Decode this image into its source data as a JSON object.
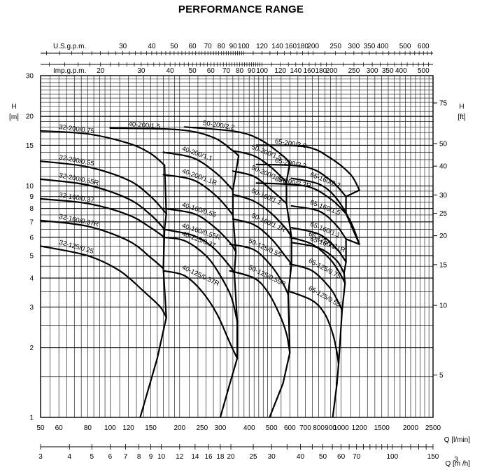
{
  "chart_data": {
    "type": "line",
    "title": "PERFORMANCE RANGE",
    "y_scale": "log",
    "x_scale": "log",
    "ylabel": "H",
    "ylabel_unit": "[m]",
    "y2label": "H",
    "y2label_unit": "[ft]",
    "xlabel_lpm": "Q [l/min]",
    "xlabel_m3h": "Q [m /h]",
    "top_axis_usgpm_label": "U.S.g.p.m.",
    "top_axis_impgpm_label": "Imp.g.p.m.",
    "ylim": [
      1,
      30
    ],
    "xlim_lpm": [
      50,
      2500
    ],
    "y_ticks_m": [
      1,
      2,
      3,
      4,
      5,
      6,
      7,
      8,
      9,
      10,
      15,
      20,
      30
    ],
    "y_ticks_ft": [
      5,
      10,
      15,
      20,
      25,
      30,
      40,
      50,
      75
    ],
    "x_ticks_lpm": [
      50,
      60,
      80,
      100,
      120,
      150,
      200,
      250,
      300,
      400,
      500,
      600,
      700,
      800,
      900,
      1000,
      1200,
      1500,
      2000,
      2500
    ],
    "x_ticks_m3h": [
      3,
      4,
      5,
      6,
      7,
      8,
      9,
      10,
      12,
      14,
      16,
      18,
      20,
      25,
      30,
      40,
      50,
      60,
      70,
      100,
      150
    ],
    "top_ticks_usgpm": [
      30,
      40,
      50,
      60,
      70,
      80,
      90,
      100,
      120,
      140,
      160,
      180,
      200,
      250,
      300,
      350,
      400,
      500,
      600
    ],
    "top_ticks_impgpm": [
      20,
      30,
      40,
      50,
      60,
      70,
      80,
      90,
      100,
      120,
      140,
      160,
      180,
      200,
      250,
      300,
      350,
      400,
      500
    ],
    "grid": true,
    "series": [
      {
        "name": "32-200/0.75",
        "points": [
          [
            50,
            17.3
          ],
          [
            80,
            16.8
          ],
          [
            120,
            15.3
          ],
          [
            150,
            13.8
          ],
          [
            172,
            12.3
          ]
        ]
      },
      {
        "name": "32-200/0.55",
        "points": [
          [
            50,
            12.8
          ],
          [
            80,
            12.1
          ],
          [
            120,
            10.6
          ],
          [
            150,
            9.0
          ],
          [
            175,
            7.6
          ]
        ]
      },
      {
        "name": "32-200/0.55R",
        "points": [
          [
            50,
            10.7
          ],
          [
            80,
            10.1
          ],
          [
            120,
            8.8
          ],
          [
            150,
            7.5
          ],
          [
            172,
            6.5
          ]
        ]
      },
      {
        "name": "32-160/0.37",
        "points": [
          [
            50,
            8.8
          ],
          [
            80,
            8.4
          ],
          [
            120,
            7.5
          ],
          [
            150,
            6.6
          ],
          [
            172,
            6.0
          ]
        ]
      },
      {
        "name": "32-160/0.37R",
        "points": [
          [
            50,
            7.1
          ],
          [
            80,
            6.7
          ],
          [
            120,
            5.8
          ],
          [
            150,
            4.9
          ],
          [
            170,
            4.4
          ]
        ]
      },
      {
        "name": "32-125/0.25",
        "points": [
          [
            50,
            5.5
          ],
          [
            80,
            5.0
          ],
          [
            110,
            4.3
          ],
          [
            140,
            3.5
          ],
          [
            165,
            3.0
          ],
          [
            175,
            2.7
          ]
        ]
      },
      {
        "name": "40-200/1.5",
        "points": [
          [
            100,
            17.8
          ],
          [
            200,
            17.5
          ],
          [
            280,
            16.2
          ],
          [
            340,
            14.2
          ],
          [
            360,
            13.5
          ]
        ]
      },
      {
        "name": "40-200/1.1",
        "points": [
          [
            170,
            14.0
          ],
          [
            230,
            13.2
          ],
          [
            290,
            11.3
          ],
          [
            340,
            9.6
          ]
        ]
      },
      {
        "name": "40-200/1.1R",
        "points": [
          [
            170,
            11.2
          ],
          [
            230,
            10.6
          ],
          [
            290,
            9.0
          ],
          [
            340,
            7.5
          ]
        ]
      },
      {
        "name": "40-160/0.55",
        "points": [
          [
            170,
            8.0
          ],
          [
            230,
            7.6
          ],
          [
            280,
            6.7
          ],
          [
            330,
            5.7
          ],
          [
            350,
            5.2
          ]
        ]
      },
      {
        "name": "40-160/0.55R",
        "points": [
          [
            170,
            6.5
          ],
          [
            230,
            6.1
          ],
          [
            280,
            5.4
          ],
          [
            330,
            4.5
          ],
          [
            345,
            4.2
          ]
        ]
      },
      {
        "name": "40-125/0.37",
        "points": [
          [
            170,
            6.0
          ],
          [
            210,
            5.8
          ],
          [
            260,
            5.0
          ],
          [
            300,
            4.1
          ],
          [
            335,
            3.3
          ],
          [
            355,
            2.6
          ]
        ]
      },
      {
        "name": "40-125/0.37R",
        "points": [
          [
            170,
            4.3
          ],
          [
            210,
            4.1
          ],
          [
            250,
            3.5
          ],
          [
            290,
            2.8
          ],
          [
            330,
            2.1
          ],
          [
            355,
            1.8
          ]
        ]
      },
      {
        "name": "50-200/2.2",
        "points": [
          [
            210,
            18.0
          ],
          [
            350,
            17.2
          ],
          [
            450,
            15.8
          ],
          [
            560,
            13.5
          ],
          [
            600,
            12.6
          ]
        ]
      },
      {
        "name": "50-200/1.5",
        "points": [
          [
            340,
            14.2
          ],
          [
            420,
            13.5
          ],
          [
            500,
            12.0
          ],
          [
            580,
            10.4
          ]
        ]
      },
      {
        "name": "50-200/1.5R",
        "points": [
          [
            340,
            11.6
          ],
          [
            420,
            11.0
          ],
          [
            500,
            9.6
          ],
          [
            580,
            8.4
          ]
        ]
      },
      {
        "name": "50-160/1.1",
        "points": [
          [
            340,
            9.2
          ],
          [
            420,
            8.6
          ],
          [
            500,
            7.6
          ],
          [
            580,
            6.5
          ],
          [
            610,
            6.0
          ]
        ]
      },
      {
        "name": "50-160/1.1R",
        "points": [
          [
            340,
            7.2
          ],
          [
            420,
            6.8
          ],
          [
            500,
            5.9
          ],
          [
            580,
            4.9
          ],
          [
            610,
            4.6
          ]
        ]
      },
      {
        "name": "50-125/0.55",
        "points": [
          [
            330,
            5.6
          ],
          [
            420,
            5.3
          ],
          [
            500,
            4.5
          ],
          [
            560,
            3.8
          ],
          [
            590,
            3.4
          ]
        ]
      },
      {
        "name": "50-125/0.55R",
        "points": [
          [
            330,
            4.3
          ],
          [
            420,
            4.0
          ],
          [
            480,
            3.5
          ],
          [
            540,
            2.8
          ],
          [
            580,
            2.3
          ],
          [
            600,
            1.9
          ]
        ]
      },
      {
        "name": "65-200/3.0",
        "points": [
          [
            430,
            15.0
          ],
          [
            700,
            14.8
          ],
          [
            900,
            13.2
          ],
          [
            1100,
            11.2
          ],
          [
            1200,
            9.6
          ]
        ]
      },
      {
        "name": "65-200/2.2",
        "points": [
          [
            430,
            12.4
          ],
          [
            700,
            12.1
          ],
          [
            900,
            10.6
          ],
          [
            1050,
            9.0
          ]
        ]
      },
      {
        "name": "65-200/2.2R",
        "points": [
          [
            430,
            10.3
          ],
          [
            700,
            10.0
          ],
          [
            900,
            8.8
          ],
          [
            1050,
            7.6
          ]
        ]
      },
      {
        "name": "65-160/2.2",
        "points": [
          [
            610,
            10.8
          ],
          [
            800,
            10.2
          ],
          [
            950,
            8.9
          ],
          [
            1100,
            7.0
          ],
          [
            1200,
            5.6
          ]
        ]
      },
      {
        "name": "65-160/1.5",
        "points": [
          [
            610,
            8.2
          ],
          [
            800,
            7.8
          ],
          [
            950,
            6.8
          ],
          [
            1050,
            5.9
          ]
        ]
      },
      {
        "name": "65-160/1.1",
        "points": [
          [
            610,
            6.6
          ],
          [
            800,
            6.2
          ],
          [
            950,
            5.4
          ],
          [
            1050,
            4.7
          ]
        ]
      },
      {
        "name": "65-160/1.1R",
        "points": [
          [
            610,
            5.7
          ],
          [
            800,
            5.4
          ],
          [
            950,
            4.8
          ],
          [
            1030,
            4.2
          ]
        ]
      },
      {
        "name": "65-125/1.1",
        "points": [
          [
            600,
            6.0
          ],
          [
            750,
            5.6
          ],
          [
            900,
            4.8
          ],
          [
            1000,
            4.1
          ],
          [
            1040,
            3.8
          ]
        ]
      },
      {
        "name": "65-125/0.75",
        "points": [
          [
            600,
            4.6
          ],
          [
            750,
            4.3
          ],
          [
            900,
            3.6
          ],
          [
            980,
            3.1
          ],
          [
            1010,
            2.9
          ]
        ]
      },
      {
        "name": "65-125/0.55",
        "points": [
          [
            600,
            3.5
          ],
          [
            750,
            3.2
          ],
          [
            850,
            2.8
          ],
          [
            920,
            2.3
          ],
          [
            960,
            1.9
          ],
          [
            975,
            1.7
          ]
        ]
      }
    ],
    "envelopes": [
      {
        "points": [
          [
            172,
            12.3
          ],
          [
            175,
            7.6
          ],
          [
            172,
            6.5
          ],
          [
            170,
            4.4
          ],
          [
            175,
            2.7
          ],
          [
            160,
            1.8
          ],
          [
            135,
            1.0
          ]
        ]
      },
      {
        "points": [
          [
            360,
            13.5
          ],
          [
            340,
            9.6
          ],
          [
            340,
            7.5
          ],
          [
            350,
            5.2
          ],
          [
            345,
            4.2
          ],
          [
            355,
            2.6
          ],
          [
            355,
            1.8
          ],
          [
            330,
            1.4
          ],
          [
            300,
            1.0
          ]
        ]
      },
      {
        "points": [
          [
            600,
            12.6
          ],
          [
            580,
            10.4
          ],
          [
            580,
            8.4
          ],
          [
            610,
            6.0
          ],
          [
            610,
            4.6
          ],
          [
            590,
            3.4
          ],
          [
            600,
            1.9
          ],
          [
            560,
            1.4
          ],
          [
            490,
            1.0
          ]
        ]
      },
      {
        "points": [
          [
            1200,
            9.6
          ],
          [
            1050,
            9.0
          ],
          [
            1050,
            7.6
          ],
          [
            1200,
            5.6
          ],
          [
            1050,
            5.9
          ],
          [
            1050,
            4.7
          ],
          [
            1030,
            4.2
          ],
          [
            1040,
            3.8
          ],
          [
            1010,
            2.9
          ],
          [
            975,
            1.7
          ],
          [
            960,
            1.4
          ],
          [
            920,
            1.0
          ]
        ]
      }
    ]
  }
}
